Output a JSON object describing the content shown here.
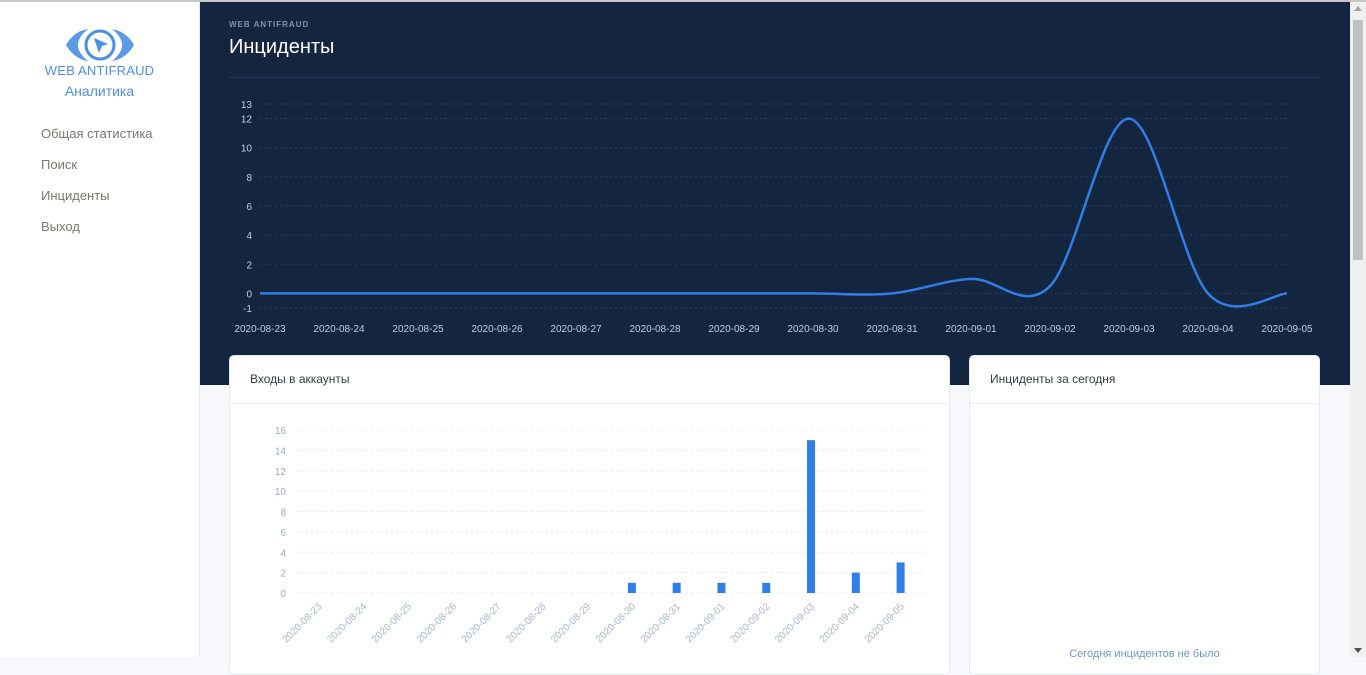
{
  "sidebar": {
    "logo": {
      "line1": "WEB ANTIFRAUD",
      "line2": "Аналитика"
    },
    "items": [
      {
        "label": "Общая статистика"
      },
      {
        "label": "Поиск"
      },
      {
        "label": "Инциденты"
      },
      {
        "label": "Выход"
      }
    ]
  },
  "header": {
    "pretitle": "WEB ANTIFRAUD",
    "title": "Инциденты"
  },
  "cards": {
    "logins": {
      "title": "Входы в аккаунты"
    },
    "today": {
      "title": "Инциденты за сегодня",
      "empty": "Сегодня инцидентов не было"
    }
  },
  "colors": {
    "accent": "#2f7fe6",
    "hero_bg": "#14253f"
  },
  "chart_data": [
    {
      "type": "line",
      "smooth": true,
      "categories": [
        "2020-08-23",
        "2020-08-24",
        "2020-08-25",
        "2020-08-26",
        "2020-08-27",
        "2020-08-28",
        "2020-08-29",
        "2020-08-30",
        "2020-08-31",
        "2020-09-01",
        "2020-09-02",
        "2020-09-03",
        "2020-09-04",
        "2020-09-05"
      ],
      "values": [
        0,
        0,
        0,
        0,
        0,
        0,
        0,
        0,
        0,
        1,
        0.5,
        12,
        0,
        0
      ],
      "yticks": [
        -1,
        0,
        2,
        4,
        6,
        8,
        10,
        12,
        13
      ],
      "ylim": [
        -1,
        13
      ],
      "grid": true
    },
    {
      "type": "bar",
      "categories": [
        "2020-08-23",
        "2020-08-24",
        "2020-08-25",
        "2020-08-26",
        "2020-08-27",
        "2020-08-28",
        "2020-08-29",
        "2020-08-30",
        "2020-08-31",
        "2020-09-01",
        "2020-09-02",
        "2020-09-03",
        "2020-09-04",
        "2020-09-05"
      ],
      "values": [
        0,
        0,
        0,
        0,
        0,
        0,
        0,
        1,
        1,
        1,
        1,
        15,
        2,
        3
      ],
      "yticks": [
        0,
        2,
        4,
        6,
        8,
        10,
        12,
        14,
        16
      ],
      "ylim": [
        0,
        16
      ],
      "grid": true
    }
  ]
}
